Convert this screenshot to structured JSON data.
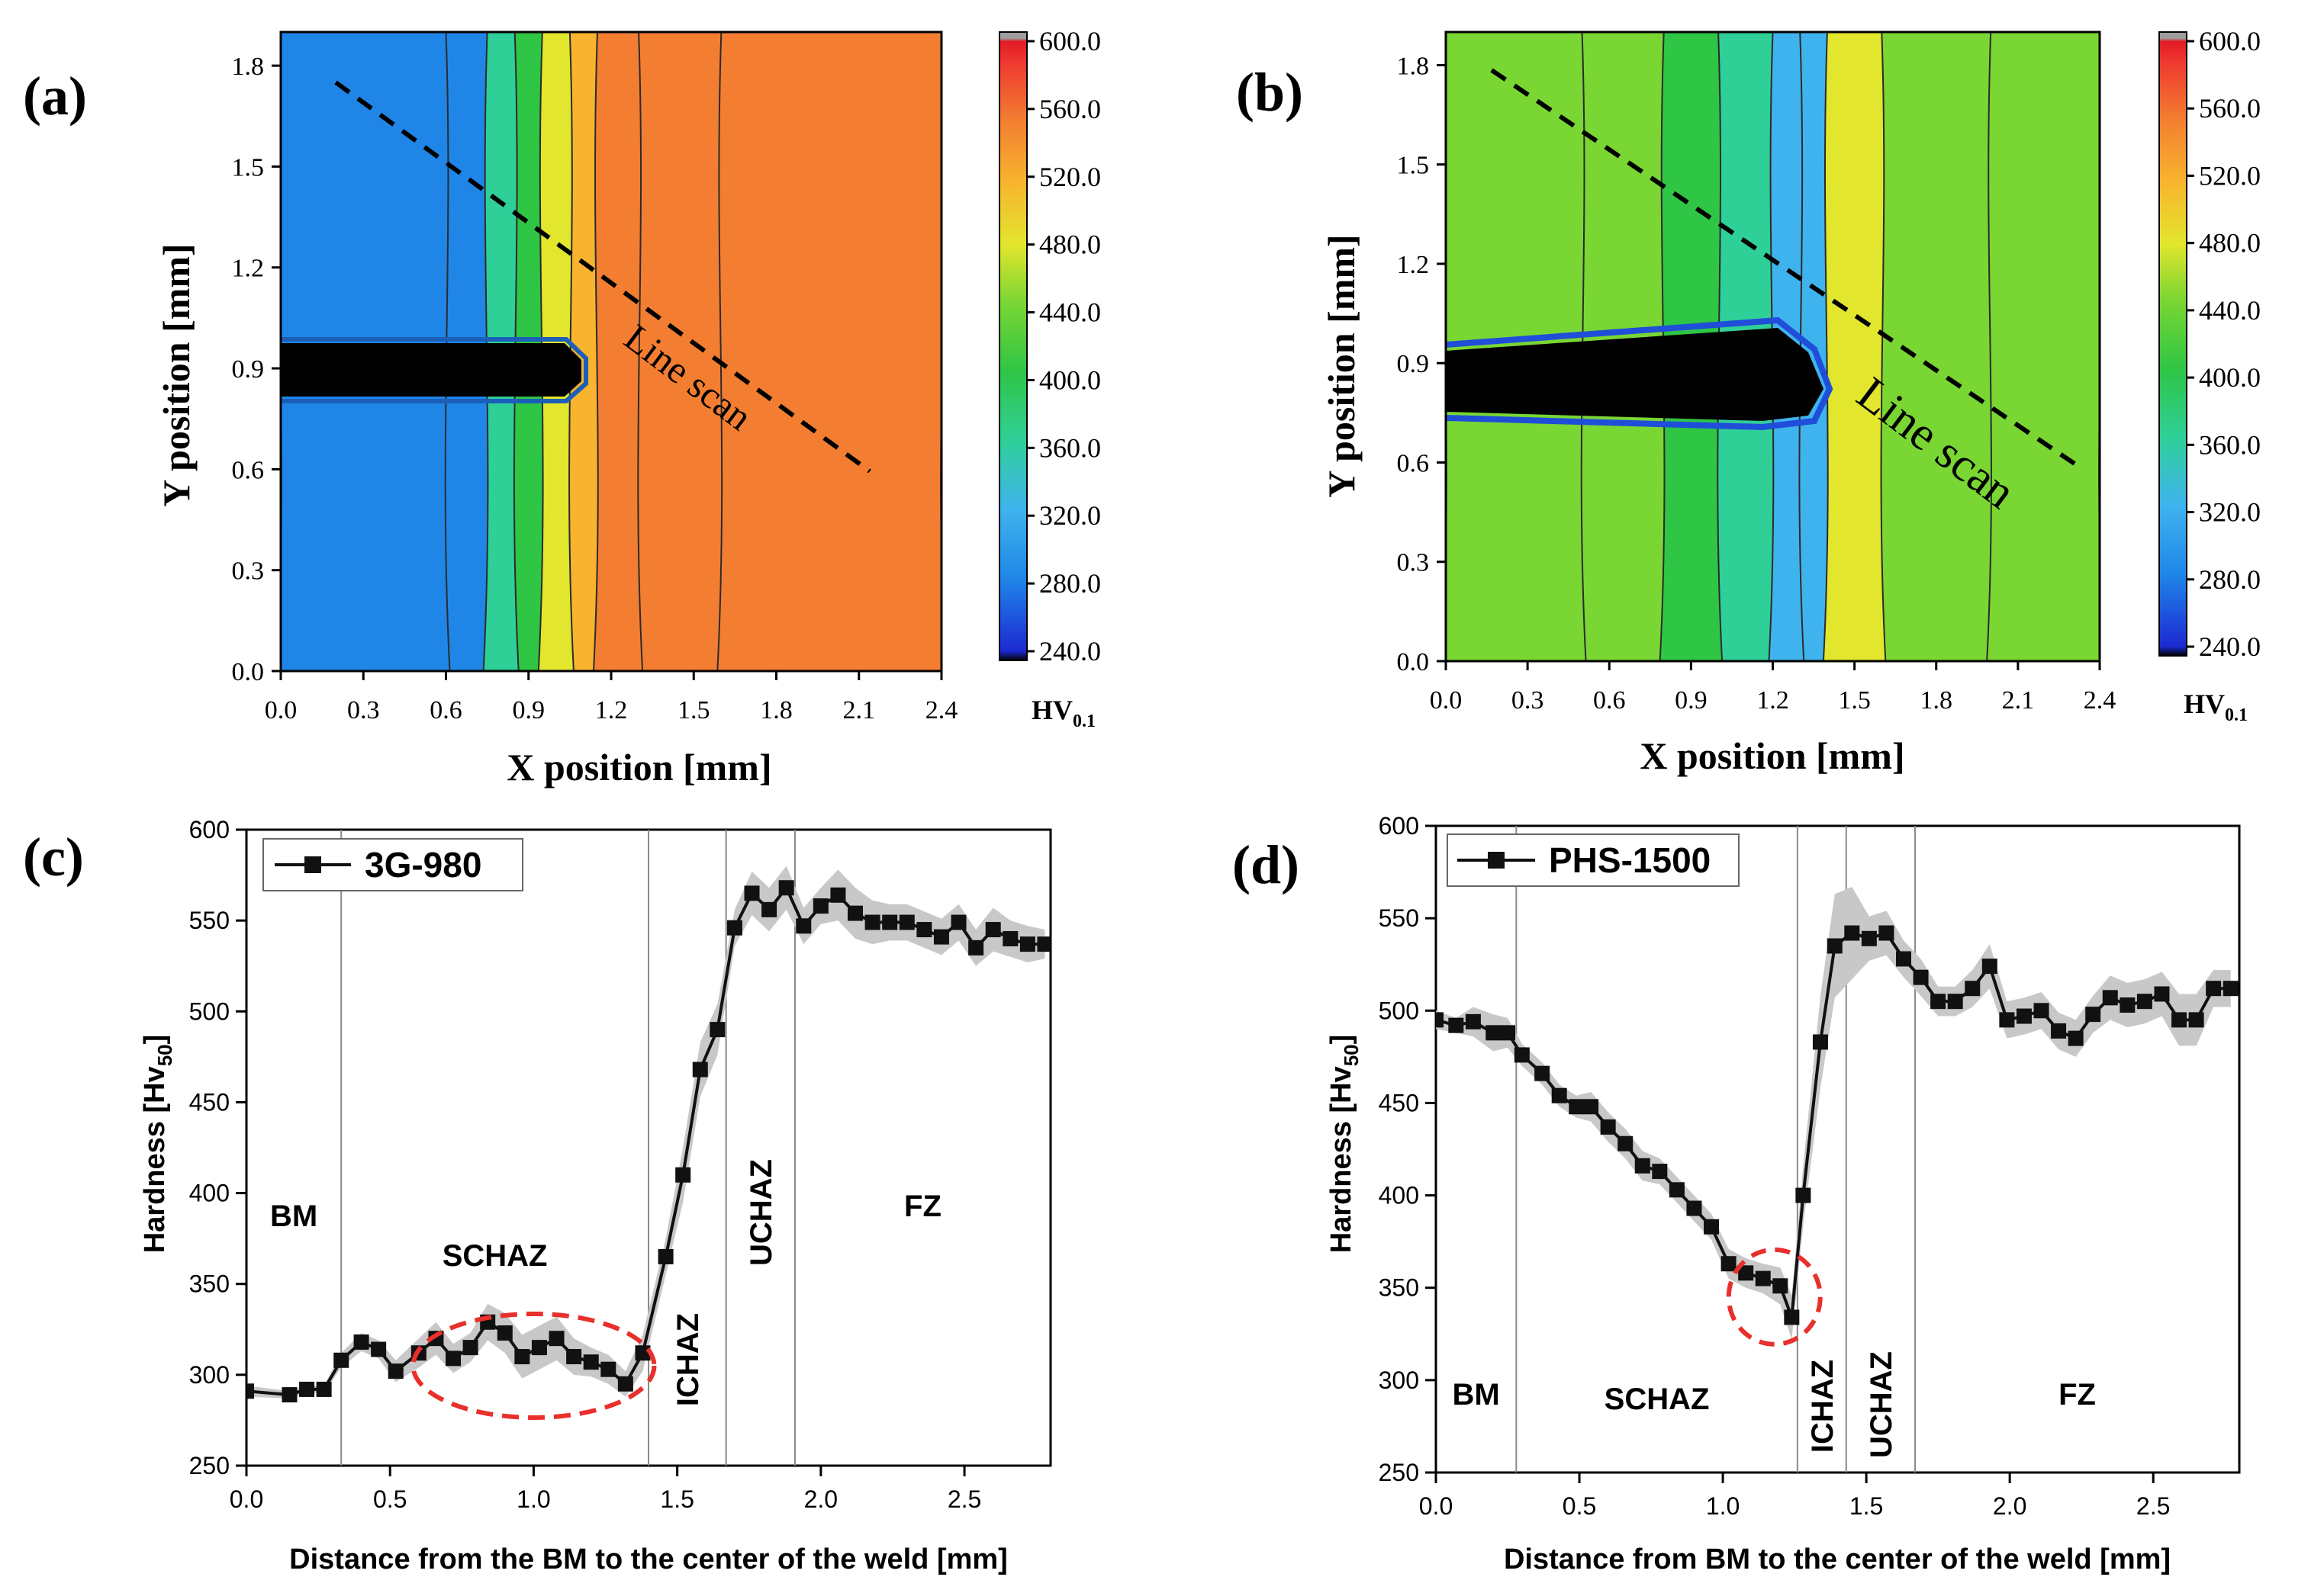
{
  "chart_data": [
    {
      "type": "heatmap",
      "panel_label": "(a)",
      "xlabel": "X position [mm]",
      "ylabel": "Y position [mm]",
      "xlim": [
        0.0,
        2.4
      ],
      "ylim": [
        0.0,
        1.9
      ],
      "xticks": [
        "0.0",
        "0.3",
        "0.6",
        "0.9",
        "1.2",
        "1.5",
        "1.8",
        "2.1",
        "2.4"
      ],
      "yticks": [
        "0.0",
        "0.3",
        "0.6",
        "0.9",
        "1.2",
        "1.5",
        "1.8"
      ],
      "colorbar_ticks": [
        "600.0",
        "560.0",
        "520.0",
        "480.0",
        "440.0",
        "400.0",
        "360.0",
        "320.0",
        "280.0",
        "240.0"
      ],
      "colorbar_label": "HV",
      "colorbar_label_sub": "0.1",
      "clim": [
        240,
        600
      ],
      "annotation": "Line scan",
      "line_scan": {
        "start": [
          0.2,
          1.75
        ],
        "end": [
          2.1,
          0.6
        ]
      },
      "hardness_profile": {
        "x_mm": [
          0.0,
          0.6,
          0.75,
          0.85,
          0.95,
          1.05,
          1.15,
          1.3,
          1.6,
          2.4
        ],
        "hv": [
          320,
          325,
          380,
          440,
          500,
          545,
          560,
          565,
          560,
          555
        ]
      },
      "notch": {
        "x_start": 0.0,
        "x_end": 1.1,
        "y_center": 0.9
      }
    },
    {
      "type": "heatmap",
      "panel_label": "(b)",
      "xlabel": "X position [mm]",
      "ylabel": "Y position [mm]",
      "xlim": [
        0.0,
        2.4
      ],
      "ylim": [
        0.0,
        1.9
      ],
      "xticks": [
        "0.0",
        "0.3",
        "0.6",
        "0.9",
        "1.2",
        "1.5",
        "1.8",
        "2.1",
        "2.4"
      ],
      "yticks": [
        "0.0",
        "0.3",
        "0.6",
        "0.9",
        "1.2",
        "1.5",
        "1.8"
      ],
      "colorbar_ticks": [
        "600.0",
        "560.0",
        "520.0",
        "480.0",
        "440.0",
        "400.0",
        "360.0",
        "320.0",
        "280.0",
        "240.0"
      ],
      "colorbar_label": "HV",
      "colorbar_label_sub": "0.1",
      "clim": [
        240,
        600
      ],
      "annotation": "Line scan",
      "line_scan": {
        "start": [
          0.15,
          1.78
        ],
        "end": [
          2.4,
          0.6
        ]
      },
      "hardness_profile": {
        "x_mm": [
          0.0,
          0.5,
          0.8,
          1.0,
          1.2,
          1.3,
          1.4,
          1.6,
          2.0,
          2.4
        ],
        "hv": [
          470,
          460,
          430,
          380,
          340,
          360,
          490,
          470,
          450,
          440
        ]
      },
      "notch": {
        "x_start": 0.0,
        "x_end": 1.4,
        "y_center": 0.85
      }
    },
    {
      "type": "line",
      "panel_label": "(c)",
      "legend": "3G-980",
      "xlabel": "Distance from the BM to the center of the weld [mm]",
      "ylabel": "Hardness [Hv",
      "ylabel_sub": "50",
      "ylabel_end": "]",
      "xlim": [
        0.0,
        2.8
      ],
      "ylim": [
        250,
        600
      ],
      "xticks": [
        "0.0",
        "0.5",
        "1.0",
        "1.5",
        "2.0",
        "2.5"
      ],
      "yticks": [
        "250",
        "300",
        "350",
        "400",
        "450",
        "500",
        "550",
        "600"
      ],
      "zone_boundaries": [
        0.33,
        1.4,
        1.67,
        1.91
      ],
      "zones": [
        "BM",
        "SCHAZ",
        "ICHAZ",
        "UCHAZ",
        "FZ"
      ],
      "highlight_center": [
        1.0,
        305
      ],
      "x": [
        0.0,
        0.15,
        0.21,
        0.27,
        0.33,
        0.4,
        0.46,
        0.52,
        0.6,
        0.66,
        0.72,
        0.78,
        0.84,
        0.9,
        0.96,
        1.02,
        1.08,
        1.14,
        1.2,
        1.26,
        1.32,
        1.38,
        1.46,
        1.52,
        1.58,
        1.64,
        1.7,
        1.76,
        1.82,
        1.88,
        1.94,
        2.0,
        2.06,
        2.12,
        2.18,
        2.24,
        2.3,
        2.36,
        2.42,
        2.48,
        2.54,
        2.6,
        2.66,
        2.72,
        2.78
      ],
      "values": [
        291,
        289,
        292,
        292,
        308,
        318,
        314,
        302,
        312,
        320,
        309,
        315,
        329,
        323,
        310,
        315,
        320,
        310,
        307,
        303,
        295,
        312,
        365,
        410,
        468,
        490,
        546,
        565,
        556,
        568,
        547,
        558,
        564,
        554,
        549,
        549,
        549,
        545,
        541,
        549,
        535,
        545,
        540,
        537,
        537
      ],
      "band_half_width": [
        3,
        2,
        2,
        2,
        4,
        5,
        5,
        6,
        8,
        9,
        8,
        8,
        10,
        11,
        12,
        12,
        12,
        10,
        8,
        8,
        7,
        10,
        10,
        15,
        15,
        14,
        10,
        12,
        12,
        12,
        10,
        10,
        14,
        14,
        12,
        10,
        10,
        10,
        10,
        10,
        10,
        12,
        10,
        10,
        8
      ]
    },
    {
      "type": "line",
      "panel_label": "(d)",
      "legend": "PHS-1500",
      "xlabel": "Distance from BM to the center of the weld [mm]",
      "ylabel": "Hardness [Hv",
      "ylabel_sub": "50",
      "ylabel_end": "]",
      "xlim": [
        0.0,
        2.8
      ],
      "ylim": [
        250,
        600
      ],
      "xticks": [
        "0.0",
        "0.5",
        "1.0",
        "1.5",
        "2.0",
        "2.5"
      ],
      "yticks": [
        "250",
        "300",
        "350",
        "400",
        "450",
        "500",
        "550",
        "600"
      ],
      "zone_boundaries": [
        0.28,
        1.26,
        1.43,
        1.67
      ],
      "zones": [
        "BM",
        "SCHAZ",
        "ICHAZ",
        "UCHAZ",
        "FZ"
      ],
      "highlight_center": [
        1.18,
        345
      ],
      "x": [
        0.0,
        0.07,
        0.13,
        0.2,
        0.25,
        0.3,
        0.37,
        0.43,
        0.49,
        0.54,
        0.6,
        0.66,
        0.72,
        0.78,
        0.84,
        0.9,
        0.96,
        1.02,
        1.08,
        1.14,
        1.2,
        1.24,
        1.28,
        1.34,
        1.39,
        1.45,
        1.51,
        1.57,
        1.63,
        1.69,
        1.75,
        1.81,
        1.87,
        1.93,
        1.99,
        2.05,
        2.11,
        2.17,
        2.23,
        2.29,
        2.35,
        2.41,
        2.47,
        2.53,
        2.59,
        2.65,
        2.71,
        2.77
      ],
      "values": [
        495,
        492,
        494,
        488,
        488,
        476,
        466,
        454,
        448,
        448,
        437,
        428,
        416,
        413,
        403,
        393,
        383,
        363,
        358,
        355,
        351,
        334,
        400,
        483,
        535,
        542,
        539,
        542,
        528,
        518,
        505,
        505,
        512,
        524,
        495,
        497,
        500,
        489,
        485,
        498,
        507,
        503,
        505,
        509,
        495,
        495,
        512,
        512
      ],
      "band_half_width": [
        5,
        4,
        8,
        10,
        8,
        6,
        6,
        6,
        6,
        8,
        8,
        8,
        8,
        7,
        7,
        7,
        7,
        8,
        8,
        8,
        10,
        12,
        16,
        25,
        28,
        25,
        12,
        12,
        10,
        10,
        8,
        8,
        10,
        12,
        10,
        10,
        10,
        10,
        10,
        10,
        12,
        12,
        12,
        12,
        14,
        14,
        10,
        10
      ]
    }
  ],
  "colors": {
    "line": "#111111",
    "band": "#c8c8c8",
    "highlight": "#e8302c",
    "divider": "#8a8a8a",
    "notch": "#000000"
  },
  "colormap": [
    "#000000",
    "#1c2ad2",
    "#1f86e8",
    "#3fb3ee",
    "#2fcf98",
    "#2fc545",
    "#7ad633",
    "#e2e62d",
    "#f8b42e",
    "#f37e31",
    "#ee3a30",
    "#e21b25",
    "#9e9e9e"
  ]
}
